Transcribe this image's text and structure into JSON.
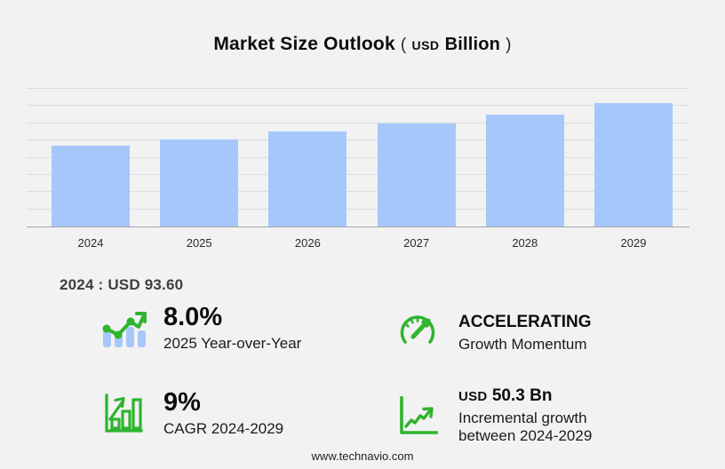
{
  "title": {
    "main": "Market Size Outlook",
    "paren_open": "(",
    "unit_small": "USD",
    "unit_bold": "Billion",
    "paren_close": ")"
  },
  "chart_data": {
    "type": "bar",
    "title": "Market Size Outlook (USD Billion)",
    "categories": [
      "2024",
      "2025",
      "2026",
      "2027",
      "2028",
      "2029"
    ],
    "values": [
      93.6,
      101.1,
      110.2,
      119.8,
      130.6,
      143.9
    ],
    "xlabel": "",
    "ylabel": "USD Billion",
    "ylim": [
      0,
      160
    ],
    "gridline_step": 20,
    "grid": true,
    "legend": false,
    "bar_color": "#a6c7fa"
  },
  "annotation": {
    "base_year_label": "2024 : USD  93.60"
  },
  "stats": [
    {
      "icon": "bar-trend-icon",
      "value": "8.0%",
      "label": "2025 Year-over-Year"
    },
    {
      "icon": "speedometer-icon",
      "value": "ACCELERATING",
      "label": "Growth Momentum"
    },
    {
      "icon": "growth-bars-icon",
      "value": "9%",
      "label": "CAGR 2024-2029"
    },
    {
      "icon": "line-growth-icon",
      "value_prefix": "USD",
      "value": "50.3 Bn",
      "label": "Incremental growth between 2024-2029"
    }
  ],
  "footer": {
    "url": "www.technavio.com"
  },
  "colors": {
    "background": "#f2f2f3",
    "bar": "#a6c7fa",
    "green": "#2eb42e",
    "grid": "#dddddf",
    "axis": "#a7a7aa",
    "text_dark": "#0d0d0d",
    "annotation_text": "#3e3e3e"
  }
}
